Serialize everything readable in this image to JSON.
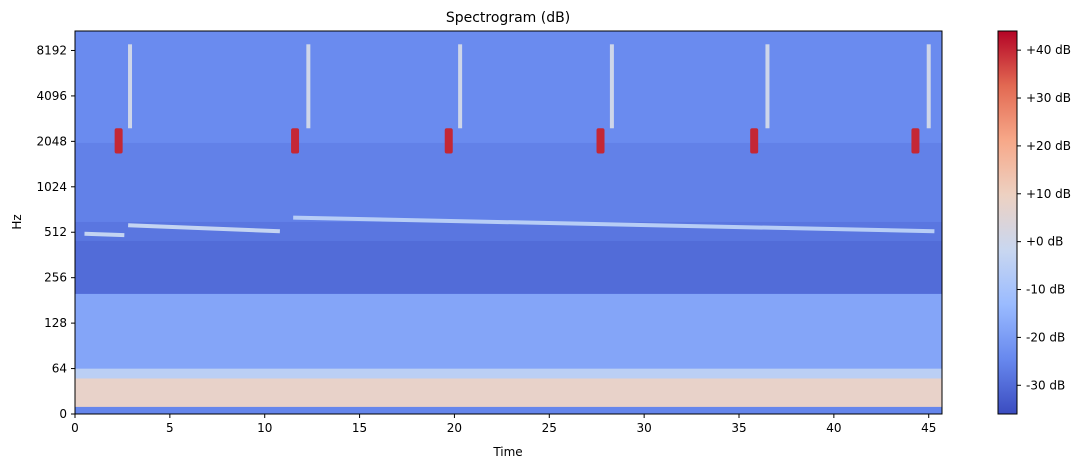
{
  "chart_data": {
    "type": "heatmap",
    "title": "Spectrogram (dB)",
    "xlabel": "Time",
    "ylabel": "Hz",
    "x_range": [
      0,
      45.7
    ],
    "x_ticks": [
      0,
      5,
      10,
      15,
      20,
      25,
      30,
      35,
      40,
      45
    ],
    "y_scale": "symlog",
    "y_range": [
      0,
      11025
    ],
    "y_ticks": [
      {
        "value": 0,
        "label": "0"
      },
      {
        "value": 64,
        "label": "64"
      },
      {
        "value": 128,
        "label": "128"
      },
      {
        "value": 256,
        "label": "256"
      },
      {
        "value": 512,
        "label": "512"
      },
      {
        "value": 1024,
        "label": "1024"
      },
      {
        "value": 2048,
        "label": "2048"
      },
      {
        "value": 4096,
        "label": "4096"
      },
      {
        "value": 8192,
        "label": "8192"
      }
    ],
    "colormap": "coolwarm",
    "colormap_stops": [
      "#3b4cc0",
      "#6788ee",
      "#9abbff",
      "#c9d7f0",
      "#edd1c2",
      "#f7a889",
      "#e26952",
      "#b40426"
    ],
    "colorbar_range": [
      -36,
      44
    ],
    "colorbar_ticks": [
      {
        "value": -30,
        "label": "-30 dB"
      },
      {
        "value": -20,
        "label": "-20 dB"
      },
      {
        "value": -10,
        "label": "-10 dB"
      },
      {
        "value": 0,
        "label": "+0 dB"
      },
      {
        "value": 10,
        "label": "+10 dB"
      },
      {
        "value": 20,
        "label": "+20 dB"
      },
      {
        "value": 30,
        "label": "+30 dB"
      },
      {
        "value": 40,
        "label": "+40 dB"
      }
    ],
    "background_db": -25,
    "bands": [
      {
        "f_low": 10,
        "f_high": 50,
        "db": 8
      },
      {
        "f_low": 50,
        "f_high": 64,
        "db": -5
      },
      {
        "f_low": 64,
        "f_high": 200,
        "db": -18
      },
      {
        "f_low": 200,
        "f_high": 450,
        "db": -30
      },
      {
        "f_low": 450,
        "f_high": 600,
        "db": -28
      },
      {
        "f_low": 600,
        "f_high": 2000,
        "db": -26
      },
      {
        "f_low": 2000,
        "f_high": 11025,
        "db": -24
      }
    ],
    "tonal_lines": [
      {
        "t_start": 0.5,
        "t_end": 2.6,
        "f_start": 500,
        "f_end": 490,
        "db": -3
      },
      {
        "t_start": 2.8,
        "t_end": 10.8,
        "f_start": 570,
        "f_end": 520,
        "db": -3
      },
      {
        "t_start": 11.5,
        "t_end": 45.3,
        "f_start": 640,
        "f_end": 520,
        "db": -6
      }
    ],
    "calls": [
      {
        "t": 2.3,
        "f_low": 1700,
        "f_high": 2500,
        "db": 40
      },
      {
        "t": 11.6,
        "f_low": 1700,
        "f_high": 2500,
        "db": 40
      },
      {
        "t": 19.7,
        "f_low": 1700,
        "f_high": 2500,
        "db": 40
      },
      {
        "t": 27.7,
        "f_low": 1700,
        "f_high": 2500,
        "db": 40
      },
      {
        "t": 35.8,
        "f_low": 1700,
        "f_high": 2500,
        "db": 40
      },
      {
        "t": 44.3,
        "f_low": 1700,
        "f_high": 2500,
        "db": 40
      }
    ],
    "streaks": [
      {
        "t": 2.9,
        "f_low": 2500,
        "f_high": 9000,
        "db": 0
      },
      {
        "t": 12.3,
        "f_low": 2500,
        "f_high": 9000,
        "db": 0
      },
      {
        "t": 20.3,
        "f_low": 2500,
        "f_high": 9000,
        "db": 0
      },
      {
        "t": 28.3,
        "f_low": 2500,
        "f_high": 9000,
        "db": 0
      },
      {
        "t": 36.5,
        "f_low": 2500,
        "f_high": 9000,
        "db": 0
      },
      {
        "t": 45.0,
        "f_low": 2500,
        "f_high": 9000,
        "db": 0
      }
    ]
  }
}
